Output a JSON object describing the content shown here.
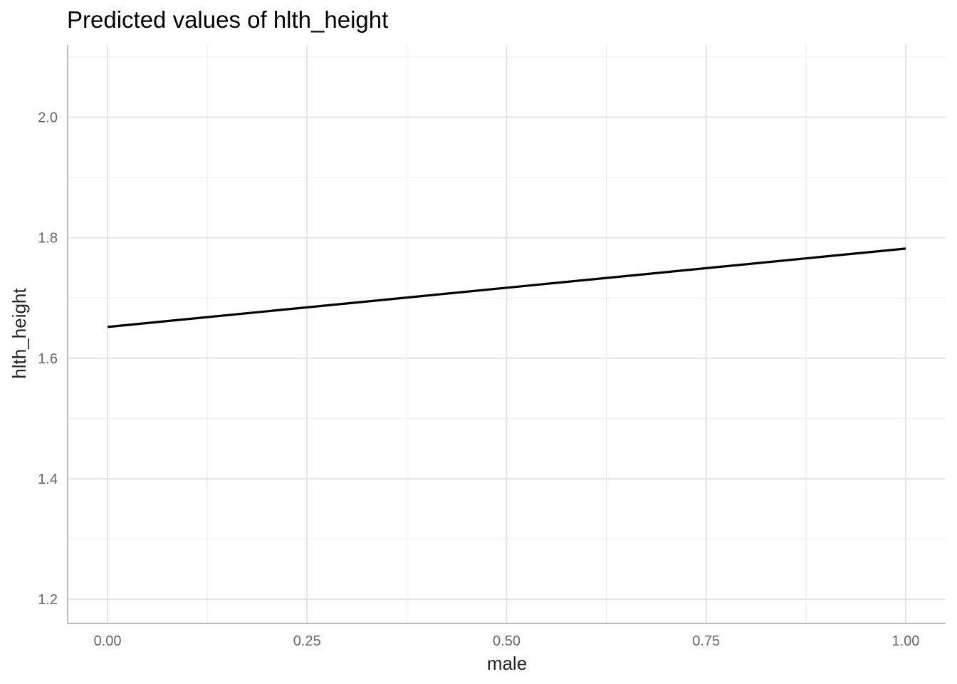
{
  "chart_data": {
    "type": "line",
    "title": "Predicted values of hlth_height",
    "xlabel": "male",
    "ylabel": "hlth_height",
    "xlim": [
      -0.05,
      1.05
    ],
    "ylim": [
      1.16,
      2.12
    ],
    "x_ticks": [
      0.0,
      0.25,
      0.5,
      0.75,
      1.0
    ],
    "x_tick_labels": [
      "0.00",
      "0.25",
      "0.50",
      "0.75",
      "1.00"
    ],
    "y_ticks": [
      1.2,
      1.4,
      1.6,
      1.8,
      2.0
    ],
    "y_tick_labels": [
      "1.2",
      "1.4",
      "1.6",
      "1.8",
      "2.0"
    ],
    "grid": true,
    "series": [
      {
        "x": [
          0.0,
          1.0
        ],
        "y": [
          1.652,
          1.782
        ],
        "color": "#000000"
      }
    ]
  }
}
